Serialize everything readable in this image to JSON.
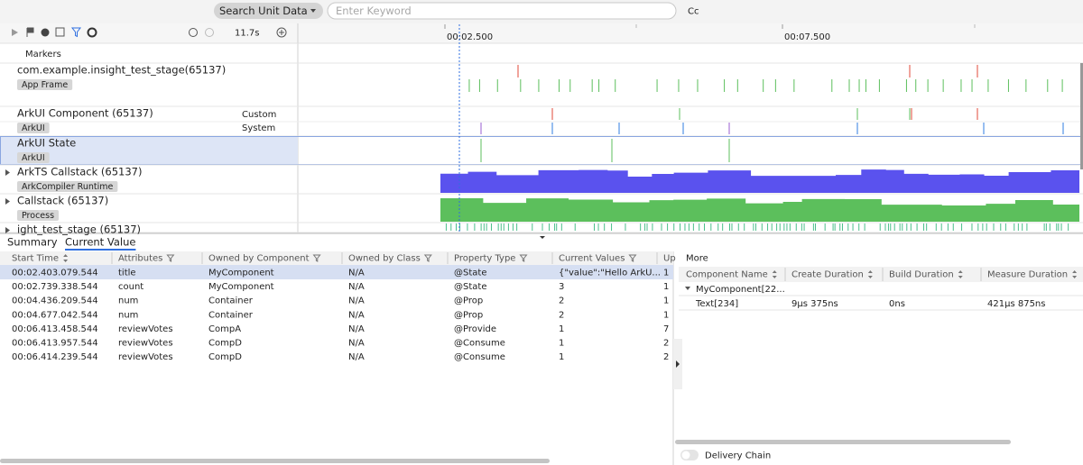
{
  "toolbar": {
    "search_scope": "Search Unit Data",
    "keyword_placeholder": "Enter Keyword",
    "match_case": "Cc"
  },
  "timeline": {
    "duration": "11.7s",
    "ticks": [
      "00:02.500",
      "00:07.500"
    ]
  },
  "tracks": [
    {
      "name": "Markers"
    },
    {
      "name": "com.example.insight_test_stage(65137)",
      "tag": "App Frame"
    },
    {
      "name": "ArkUI Component (65137)",
      "tag": "ArkUI",
      "sublabels": [
        "Custom",
        "System"
      ]
    },
    {
      "name": "ArkUI State",
      "tag": "ArkUI"
    },
    {
      "name": "ArkTS Callstack (65137)",
      "tag": "ArkCompiler Runtime"
    },
    {
      "name": "Callstack (65137)",
      "tag": "Process"
    },
    {
      "name": "ight_test_stage (65137)"
    }
  ],
  "bottom_tabs": [
    "Summary",
    "Current Value"
  ],
  "table": {
    "columns": [
      "Start Time",
      "Attributes",
      "Owned by Component",
      "Owned by Class",
      "Property Type",
      "Current Values",
      "Up"
    ],
    "rows": [
      [
        "00:02.403.079.544",
        "title",
        "MyComponent",
        "N/A",
        "@State",
        "{\"value\":\"Hello ArkU...",
        "1"
      ],
      [
        "00:02.739.338.544",
        "count",
        "MyComponent",
        "N/A",
        "@State",
        "3",
        "1"
      ],
      [
        "00:04.436.209.544",
        "num",
        "Container",
        "N/A",
        "@Prop",
        "2",
        "1"
      ],
      [
        "00:04.677.042.544",
        "num",
        "Container",
        "N/A",
        "@Prop",
        "2",
        "1"
      ],
      [
        "00:06.413.458.544",
        "reviewVotes",
        "CompA",
        "N/A",
        "@Provide",
        "1",
        "7"
      ],
      [
        "00:06.413.957.544",
        "reviewVotes",
        "CompD",
        "N/A",
        "@Consume",
        "1",
        "2"
      ],
      [
        "00:06.414.239.544",
        "reviewVotes",
        "CompD",
        "N/A",
        "@Consume",
        "1",
        "2"
      ]
    ]
  },
  "detail": {
    "title": "More",
    "columns": [
      "Component Name",
      "Create Duration",
      "Build Duration",
      "Measure Duration"
    ],
    "tree": [
      {
        "label": "MyComponent[22..."
      },
      {
        "cells": [
          "Text[234]",
          "9μs 375ns",
          "0ns",
          "421μs 875ns"
        ]
      }
    ]
  },
  "footer": {
    "toggle": "Delivery Chain"
  }
}
